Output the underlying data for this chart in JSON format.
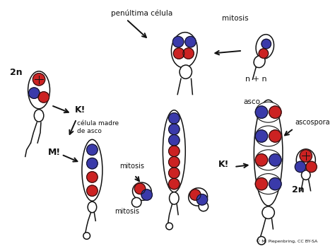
{
  "background_color": "#ffffff",
  "blue_color": "#3a3aaa",
  "red_color": "#cc2222",
  "outline_color": "#111111",
  "labels": {
    "penultima": "penúltima célula",
    "mitosis_top": "mitosis",
    "nn": "n + n",
    "K1_top": "K!",
    "two_n_left": "2n",
    "celula_madre": "célula madre\nde asco",
    "M": "M!",
    "mitosis_mid": "mitosis",
    "mitosis_bot": "mitosis",
    "asco": "asco",
    "ascospora": "ascospora",
    "K2": "K!",
    "two_n_right": "2n",
    "copyright": "© M. Piepenbring, CC BY-SA"
  }
}
